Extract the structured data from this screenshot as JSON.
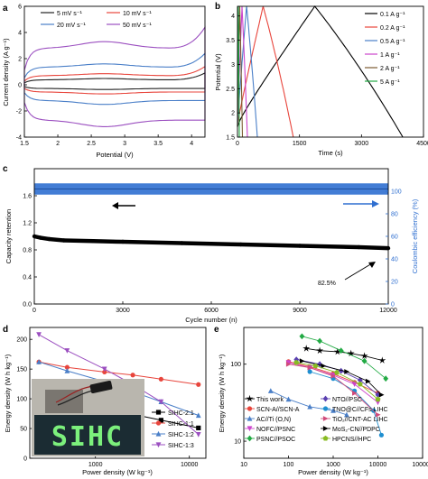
{
  "chart_data": [
    {
      "panel": "a",
      "type": "line",
      "title": "",
      "xlabel": "Potential (V)",
      "ylabel": "Current density (A g⁻¹)",
      "xlim": [
        1.5,
        4.2
      ],
      "ylim": [
        -4,
        6
      ],
      "xticks": [
        1.5,
        2.0,
        2.5,
        3.0,
        3.5,
        4.0
      ],
      "yticks": [
        -4,
        -2,
        0,
        2,
        4,
        6
      ],
      "legend_position": "top",
      "series": [
        {
          "name": "5 mV s⁻¹",
          "color": "#222222",
          "anodic": 0.38,
          "cathodic": -0.28,
          "anodic_peak": 0.1,
          "cathodic_peak": -0.08,
          "tail_top": 0.9,
          "tail_bottom": -0.7
        },
        {
          "name": "10 mV s⁻¹",
          "color": "#e8453c",
          "anodic": 0.7,
          "cathodic": -0.55,
          "anodic_peak": 0.15,
          "cathodic_peak": -0.15,
          "tail_top": 1.4,
          "tail_bottom": -1.1
        },
        {
          "name": "20 mV s⁻¹",
          "color": "#4a7fc8",
          "anodic": 1.35,
          "cathodic": -1.2,
          "anodic_peak": 0.25,
          "cathodic_peak": -0.3,
          "tail_top": 2.4,
          "tail_bottom": -1.9
        },
        {
          "name": "50 mV s⁻¹",
          "color": "#9b4fc0",
          "anodic": 2.8,
          "cathodic": -2.7,
          "anodic_peak": 0.5,
          "cathodic_peak": -0.5,
          "tail_top": 4.4,
          "tail_bottom": -3.6
        }
      ]
    },
    {
      "panel": "b",
      "type": "line",
      "title": "",
      "xlabel": "Time (s)",
      "ylabel": "Potential (V)",
      "xlim": [
        0,
        4500
      ],
      "ylim": [
        1.5,
        4.2
      ],
      "xticks": [
        0,
        1500,
        3000,
        4500
      ],
      "yticks": [
        1.5,
        2.0,
        2.5,
        3.0,
        3.5,
        4.0
      ],
      "legend_position": "right",
      "series": [
        {
          "name": "0.1 A g⁻¹",
          "color": "#000000",
          "t_charge": 1870,
          "t_end": 4000
        },
        {
          "name": "0.2 A g⁻¹",
          "color": "#e8453c",
          "t_charge": 620,
          "t_end": 1350
        },
        {
          "name": "0.5 A g⁻¹",
          "color": "#4a7fc8",
          "t_charge": 220,
          "t_end": 480
        },
        {
          "name": "1 A g⁻¹",
          "color": "#cc44cc",
          "t_charge": 110,
          "t_end": 240
        },
        {
          "name": "2 A g⁻¹",
          "color": "#7a5a30",
          "t_charge": 55,
          "t_end": 120
        },
        {
          "name": "5 A g⁻¹",
          "color": "#22aa44",
          "t_charge": 22,
          "t_end": 45
        }
      ]
    },
    {
      "panel": "c",
      "type": "scatter",
      "title": "",
      "xlabel": "Cycle number (n)",
      "ylabel": "Capacity retention",
      "ylabel_right": "Coulombic efficiency (%)",
      "xlim": [
        0,
        12000
      ],
      "ylim": [
        0,
        2.0
      ],
      "ylim_right": [
        0,
        120
      ],
      "xticks": [
        0,
        3000,
        6000,
        9000,
        12000
      ],
      "yticks": [
        0.0,
        0.4,
        0.8,
        1.2,
        1.6
      ],
      "yticks_right": [
        0,
        20,
        40,
        60,
        80,
        100
      ],
      "annotation": "82.5%",
      "capacity_retention": {
        "x": [
          0,
          200,
          500,
          1000,
          2000,
          3000,
          4000,
          5000,
          6000,
          7000,
          8000,
          9000,
          10000,
          11000,
          12000
        ],
        "values": [
          1.0,
          0.98,
          0.96,
          0.94,
          0.93,
          0.92,
          0.91,
          0.9,
          0.89,
          0.88,
          0.87,
          0.86,
          0.85,
          0.84,
          0.825
        ],
        "color": "#000000"
      },
      "coulombic_efficiency": {
        "x": [
          0,
          12000
        ],
        "values": [
          102,
          102
        ],
        "spread": 5,
        "color": "#2f6fd0"
      }
    },
    {
      "panel": "d",
      "type": "line",
      "title": "",
      "xlabel": "Power density (W kg⁻¹)",
      "ylabel": "Energy density (W h kg⁻¹)",
      "xscale": "log",
      "xlim": [
        200,
        15000
      ],
      "ylim": [
        0,
        220
      ],
      "xticks": [
        1000,
        10000
      ],
      "xtick_labels": [
        "1000",
        "10000"
      ],
      "yticks": [
        0,
        50,
        100,
        150,
        200
      ],
      "legend_position": "bottom-right",
      "inset_text": "SIHC",
      "series": [
        {
          "name": "SIHC-2:1",
          "color": "#000000",
          "marker": "square",
          "x": [
            250,
            500,
            1250,
            2500,
            5000,
            12500
          ],
          "values": [
            112,
            97,
            84,
            74,
            64,
            51
          ]
        },
        {
          "name": "SIHC-1:1",
          "color": "#e8453c",
          "marker": "circle",
          "x": [
            250,
            500,
            1250,
            2500,
            5000,
            12500
          ],
          "values": [
            162,
            153,
            145,
            140,
            133,
            124
          ]
        },
        {
          "name": "SIHC-1:2",
          "color": "#4a7fc8",
          "marker": "triangle",
          "x": [
            250,
            500,
            1250,
            2500,
            5000,
            12500
          ],
          "values": [
            162,
            147,
            129,
            112,
            95,
            72
          ]
        },
        {
          "name": "SIHC-1:3",
          "color": "#9b4fc0",
          "marker": "triangle-down",
          "x": [
            250,
            500,
            1250,
            2500,
            5000,
            12500
          ],
          "values": [
            208,
            181,
            150,
            124,
            95,
            40
          ]
        }
      ]
    },
    {
      "panel": "e",
      "type": "line",
      "title": "",
      "xlabel": "Power density (W kg⁻¹)",
      "ylabel": "Energy density (W h kg⁻¹)",
      "xscale": "log",
      "yscale": "log",
      "xlim": [
        10,
        100000
      ],
      "ylim": [
        6,
        300
      ],
      "xticks": [
        10,
        100,
        1000,
        10000,
        100000
      ],
      "xtick_labels": [
        "10",
        "100",
        "1000",
        "10000",
        "100000"
      ],
      "yticks": [
        10,
        100
      ],
      "ytick_labels": [
        "10",
        "100"
      ],
      "legend_columns": 2,
      "series": [
        {
          "name": "This work",
          "color": "#000000",
          "marker": "star",
          "x": [
            250,
            500,
            1250,
            2500,
            5000,
            12500
          ],
          "values": [
            160,
            150,
            145,
            138,
            128,
            112
          ]
        },
        {
          "name": "SCN-A//SCN-A",
          "color": "#e8453c",
          "marker": "circle",
          "x": [
            100,
            300,
            1000,
            3000,
            10000
          ],
          "values": [
            108,
            93,
            75,
            58,
            42
          ]
        },
        {
          "name": "AC//Ti (O,N)",
          "color": "#4a7fc8",
          "marker": "triangle",
          "x": [
            40,
            100,
            300,
            1000,
            2000
          ],
          "values": [
            45,
            35,
            28,
            25,
            22
          ]
        },
        {
          "name": "NOFC//PSNC",
          "color": "#cc44cc",
          "marker": "triangle-down",
          "x": [
            100,
            300,
            1000,
            3000,
            10000
          ],
          "values": [
            105,
            90,
            72,
            55,
            32
          ]
        },
        {
          "name": "PSNC//PSOC",
          "color": "#22aa44",
          "marker": "diamond",
          "x": [
            200,
            500,
            1500,
            5000,
            15000
          ],
          "values": [
            230,
            200,
            150,
            110,
            65
          ]
        },
        {
          "name": "NTO//PSC",
          "color": "#5a3fb0",
          "marker": "diamond",
          "x": [
            150,
            500,
            1500,
            4000,
            10000
          ],
          "values": [
            115,
            100,
            82,
            62,
            40
          ]
        },
        {
          "name": "TNO@C//CFs LIHC",
          "color": "#1f8fd0",
          "marker": "circle",
          "x": [
            300,
            1000,
            3000,
            8000,
            12000
          ],
          "values": [
            80,
            65,
            45,
            25,
            12
          ]
        },
        {
          "name": "TiO₂//CNT-AC LIHC",
          "color": "#d04a7a",
          "marker": "triangle-right",
          "x": [
            100,
            300,
            1000,
            3000,
            10000
          ],
          "values": [
            100,
            90,
            70,
            42,
            22
          ]
        },
        {
          "name": "MoS₂-CN//PDPC",
          "color": "#000000",
          "marker": "triangle-right",
          "x": [
            200,
            600,
            2000,
            6000,
            12000
          ],
          "values": [
            110,
            95,
            80,
            60,
            40
          ]
        },
        {
          "name": "HPCNS//HPC",
          "color": "#88bb22",
          "marker": "pentagon",
          "x": [
            150,
            400,
            1200,
            4000,
            10000
          ],
          "values": [
            105,
            95,
            78,
            55,
            35
          ]
        }
      ]
    }
  ]
}
